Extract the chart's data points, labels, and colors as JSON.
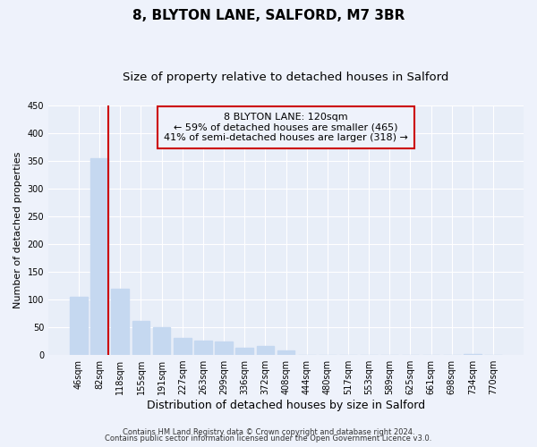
{
  "title": "8, BLYTON LANE, SALFORD, M7 3BR",
  "subtitle": "Size of property relative to detached houses in Salford",
  "xlabel": "Distribution of detached houses by size in Salford",
  "ylabel": "Number of detached properties",
  "bar_labels": [
    "46sqm",
    "82sqm",
    "118sqm",
    "155sqm",
    "191sqm",
    "227sqm",
    "263sqm",
    "299sqm",
    "336sqm",
    "372sqm",
    "408sqm",
    "444sqm",
    "480sqm",
    "517sqm",
    "553sqm",
    "589sqm",
    "625sqm",
    "661sqm",
    "698sqm",
    "734sqm",
    "770sqm"
  ],
  "bar_values": [
    105,
    355,
    120,
    62,
    50,
    30,
    26,
    24,
    13,
    17,
    8,
    0,
    0,
    0,
    0,
    0,
    0,
    0,
    0,
    2,
    0
  ],
  "bar_color": "#c5d8f0",
  "vline_index": 1,
  "vline_color": "#cc0000",
  "ylim": [
    0,
    450
  ],
  "yticks": [
    0,
    50,
    100,
    150,
    200,
    250,
    300,
    350,
    400,
    450
  ],
  "annotation_text": "8 BLYTON LANE: 120sqm\n← 59% of detached houses are smaller (465)\n41% of semi-detached houses are larger (318) →",
  "annotation_box_edgecolor": "#cc0000",
  "footer_line1": "Contains HM Land Registry data © Crown copyright and database right 2024.",
  "footer_line2": "Contains public sector information licensed under the Open Government Licence v3.0.",
  "bg_color": "#eef2fb",
  "plot_bg_color": "#e8eef8",
  "grid_color": "#ffffff",
  "title_fontsize": 11,
  "subtitle_fontsize": 9.5,
  "xlabel_fontsize": 9,
  "ylabel_fontsize": 8
}
